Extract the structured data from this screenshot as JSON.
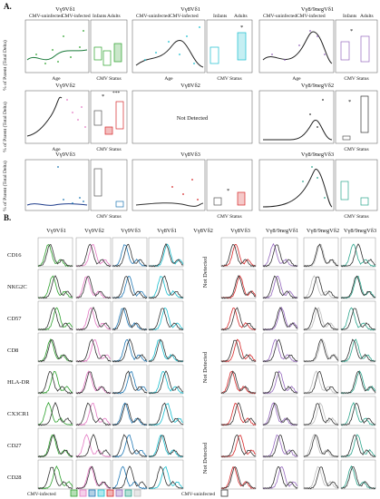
{
  "figure": {
    "panel_a_label": "A.",
    "panel_b_label": "B.",
    "panel_a": {
      "row_titles": [
        "Vγ9Vδ1",
        "Vγ8Vδ1",
        "Vγ8/9negVδ1",
        "Vγ9Vδ2",
        "Vγ8Vδ2",
        "Vγ8/9negVδ2",
        "Vγ9Vδ3",
        "Vγ8Vδ3",
        "Vγ8/9negVδ3"
      ],
      "status_labels": [
        "CMV-uninfected",
        "CMV-infected"
      ],
      "group_labels": [
        "Infants",
        "Adults"
      ],
      "y_axis_label": "% of Parent (Total Delta)",
      "x_axis_age": "Age",
      "x_axis_status": "CMV Status",
      "not_detected": "Not Detected",
      "age_ticks": [
        "cord",
        "1",
        "2",
        "6",
        "9",
        "12",
        "adult",
        "adult"
      ],
      "sig_marks": [
        "*",
        "**",
        "***"
      ]
    },
    "panel_b": {
      "columns_left": [
        "Vγ9Vδ1",
        "Vγ9Vδ2",
        "Vγ9Vδ3",
        "Vγ8Vδ1",
        "Vγ8Vδ2"
      ],
      "columns_right": [
        "Vγ8Vδ3",
        "Vγ8/9negVδ1",
        "Vγ8/9negVδ2",
        "Vγ8/9negVδ3"
      ],
      "rows": [
        "CD16",
        "NKG2C",
        "CD57",
        "CD8",
        "HLA-DR",
        "CX3CR1",
        "CD27",
        "CD28"
      ],
      "not_detected": "Not Detected",
      "legend_infected": "CMV-infected",
      "legend_uninfected": "CMV-uninfected",
      "colors": {
        "Vγ9Vδ1": "#2ca02c",
        "Vγ9Vδ2": "#e377c2",
        "Vγ9Vδ3": "#1f77b4",
        "Vγ8Vδ1": "#17becf",
        "Vγ8Vδ3": "#d62728",
        "Vγ8/9negVδ1": "#9467bd",
        "Vγ8/9negVδ2": "#bbbbbb",
        "Vγ8/9negVδ3": "#2ca58d",
        "uninfected": "#333333"
      }
    }
  }
}
